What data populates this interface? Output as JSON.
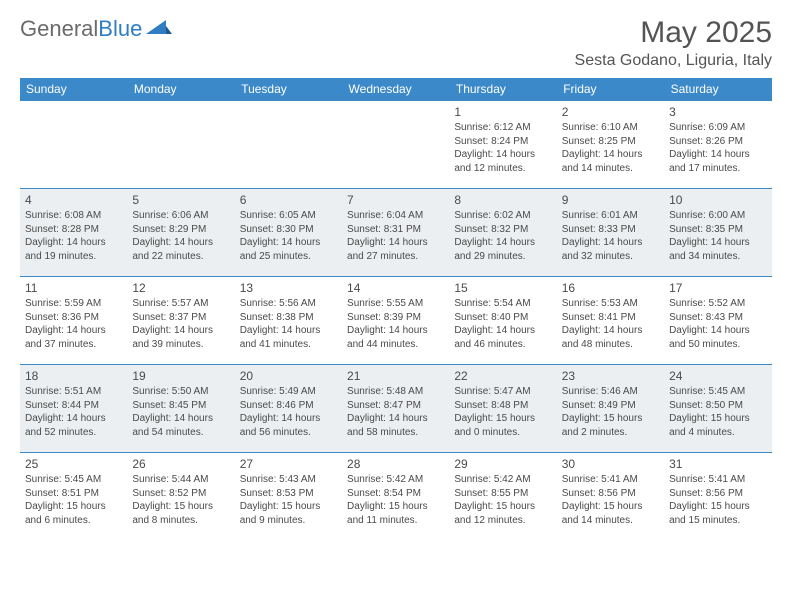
{
  "logo": {
    "text1": "General",
    "text2": "Blue"
  },
  "title": "May 2025",
  "location": "Sesta Godano, Liguria, Italy",
  "colors": {
    "header_bg": "#3b89c9",
    "header_text": "#ffffff",
    "row_alt_bg": "#eceff1",
    "border": "#3b89c9",
    "title_color": "#545454",
    "logo_gray": "#6b6b6b",
    "logo_blue": "#2f7ec2"
  },
  "day_headers": [
    "Sunday",
    "Monday",
    "Tuesday",
    "Wednesday",
    "Thursday",
    "Friday",
    "Saturday"
  ],
  "weeks": [
    [
      null,
      null,
      null,
      null,
      {
        "n": "1",
        "sunrise": "6:12 AM",
        "sunset": "8:24 PM",
        "dl": "14 hours and 12 minutes."
      },
      {
        "n": "2",
        "sunrise": "6:10 AM",
        "sunset": "8:25 PM",
        "dl": "14 hours and 14 minutes."
      },
      {
        "n": "3",
        "sunrise": "6:09 AM",
        "sunset": "8:26 PM",
        "dl": "14 hours and 17 minutes."
      }
    ],
    [
      {
        "n": "4",
        "sunrise": "6:08 AM",
        "sunset": "8:28 PM",
        "dl": "14 hours and 19 minutes."
      },
      {
        "n": "5",
        "sunrise": "6:06 AM",
        "sunset": "8:29 PM",
        "dl": "14 hours and 22 minutes."
      },
      {
        "n": "6",
        "sunrise": "6:05 AM",
        "sunset": "8:30 PM",
        "dl": "14 hours and 25 minutes."
      },
      {
        "n": "7",
        "sunrise": "6:04 AM",
        "sunset": "8:31 PM",
        "dl": "14 hours and 27 minutes."
      },
      {
        "n": "8",
        "sunrise": "6:02 AM",
        "sunset": "8:32 PM",
        "dl": "14 hours and 29 minutes."
      },
      {
        "n": "9",
        "sunrise": "6:01 AM",
        "sunset": "8:33 PM",
        "dl": "14 hours and 32 minutes."
      },
      {
        "n": "10",
        "sunrise": "6:00 AM",
        "sunset": "8:35 PM",
        "dl": "14 hours and 34 minutes."
      }
    ],
    [
      {
        "n": "11",
        "sunrise": "5:59 AM",
        "sunset": "8:36 PM",
        "dl": "14 hours and 37 minutes."
      },
      {
        "n": "12",
        "sunrise": "5:57 AM",
        "sunset": "8:37 PM",
        "dl": "14 hours and 39 minutes."
      },
      {
        "n": "13",
        "sunrise": "5:56 AM",
        "sunset": "8:38 PM",
        "dl": "14 hours and 41 minutes."
      },
      {
        "n": "14",
        "sunrise": "5:55 AM",
        "sunset": "8:39 PM",
        "dl": "14 hours and 44 minutes."
      },
      {
        "n": "15",
        "sunrise": "5:54 AM",
        "sunset": "8:40 PM",
        "dl": "14 hours and 46 minutes."
      },
      {
        "n": "16",
        "sunrise": "5:53 AM",
        "sunset": "8:41 PM",
        "dl": "14 hours and 48 minutes."
      },
      {
        "n": "17",
        "sunrise": "5:52 AM",
        "sunset": "8:43 PM",
        "dl": "14 hours and 50 minutes."
      }
    ],
    [
      {
        "n": "18",
        "sunrise": "5:51 AM",
        "sunset": "8:44 PM",
        "dl": "14 hours and 52 minutes."
      },
      {
        "n": "19",
        "sunrise": "5:50 AM",
        "sunset": "8:45 PM",
        "dl": "14 hours and 54 minutes."
      },
      {
        "n": "20",
        "sunrise": "5:49 AM",
        "sunset": "8:46 PM",
        "dl": "14 hours and 56 minutes."
      },
      {
        "n": "21",
        "sunrise": "5:48 AM",
        "sunset": "8:47 PM",
        "dl": "14 hours and 58 minutes."
      },
      {
        "n": "22",
        "sunrise": "5:47 AM",
        "sunset": "8:48 PM",
        "dl": "15 hours and 0 minutes."
      },
      {
        "n": "23",
        "sunrise": "5:46 AM",
        "sunset": "8:49 PM",
        "dl": "15 hours and 2 minutes."
      },
      {
        "n": "24",
        "sunrise": "5:45 AM",
        "sunset": "8:50 PM",
        "dl": "15 hours and 4 minutes."
      }
    ],
    [
      {
        "n": "25",
        "sunrise": "5:45 AM",
        "sunset": "8:51 PM",
        "dl": "15 hours and 6 minutes."
      },
      {
        "n": "26",
        "sunrise": "5:44 AM",
        "sunset": "8:52 PM",
        "dl": "15 hours and 8 minutes."
      },
      {
        "n": "27",
        "sunrise": "5:43 AM",
        "sunset": "8:53 PM",
        "dl": "15 hours and 9 minutes."
      },
      {
        "n": "28",
        "sunrise": "5:42 AM",
        "sunset": "8:54 PM",
        "dl": "15 hours and 11 minutes."
      },
      {
        "n": "29",
        "sunrise": "5:42 AM",
        "sunset": "8:55 PM",
        "dl": "15 hours and 12 minutes."
      },
      {
        "n": "30",
        "sunrise": "5:41 AM",
        "sunset": "8:56 PM",
        "dl": "15 hours and 14 minutes."
      },
      {
        "n": "31",
        "sunrise": "5:41 AM",
        "sunset": "8:56 PM",
        "dl": "15 hours and 15 minutes."
      }
    ]
  ],
  "labels": {
    "sunrise": "Sunrise: ",
    "sunset": "Sunset: ",
    "daylight": "Daylight: "
  }
}
